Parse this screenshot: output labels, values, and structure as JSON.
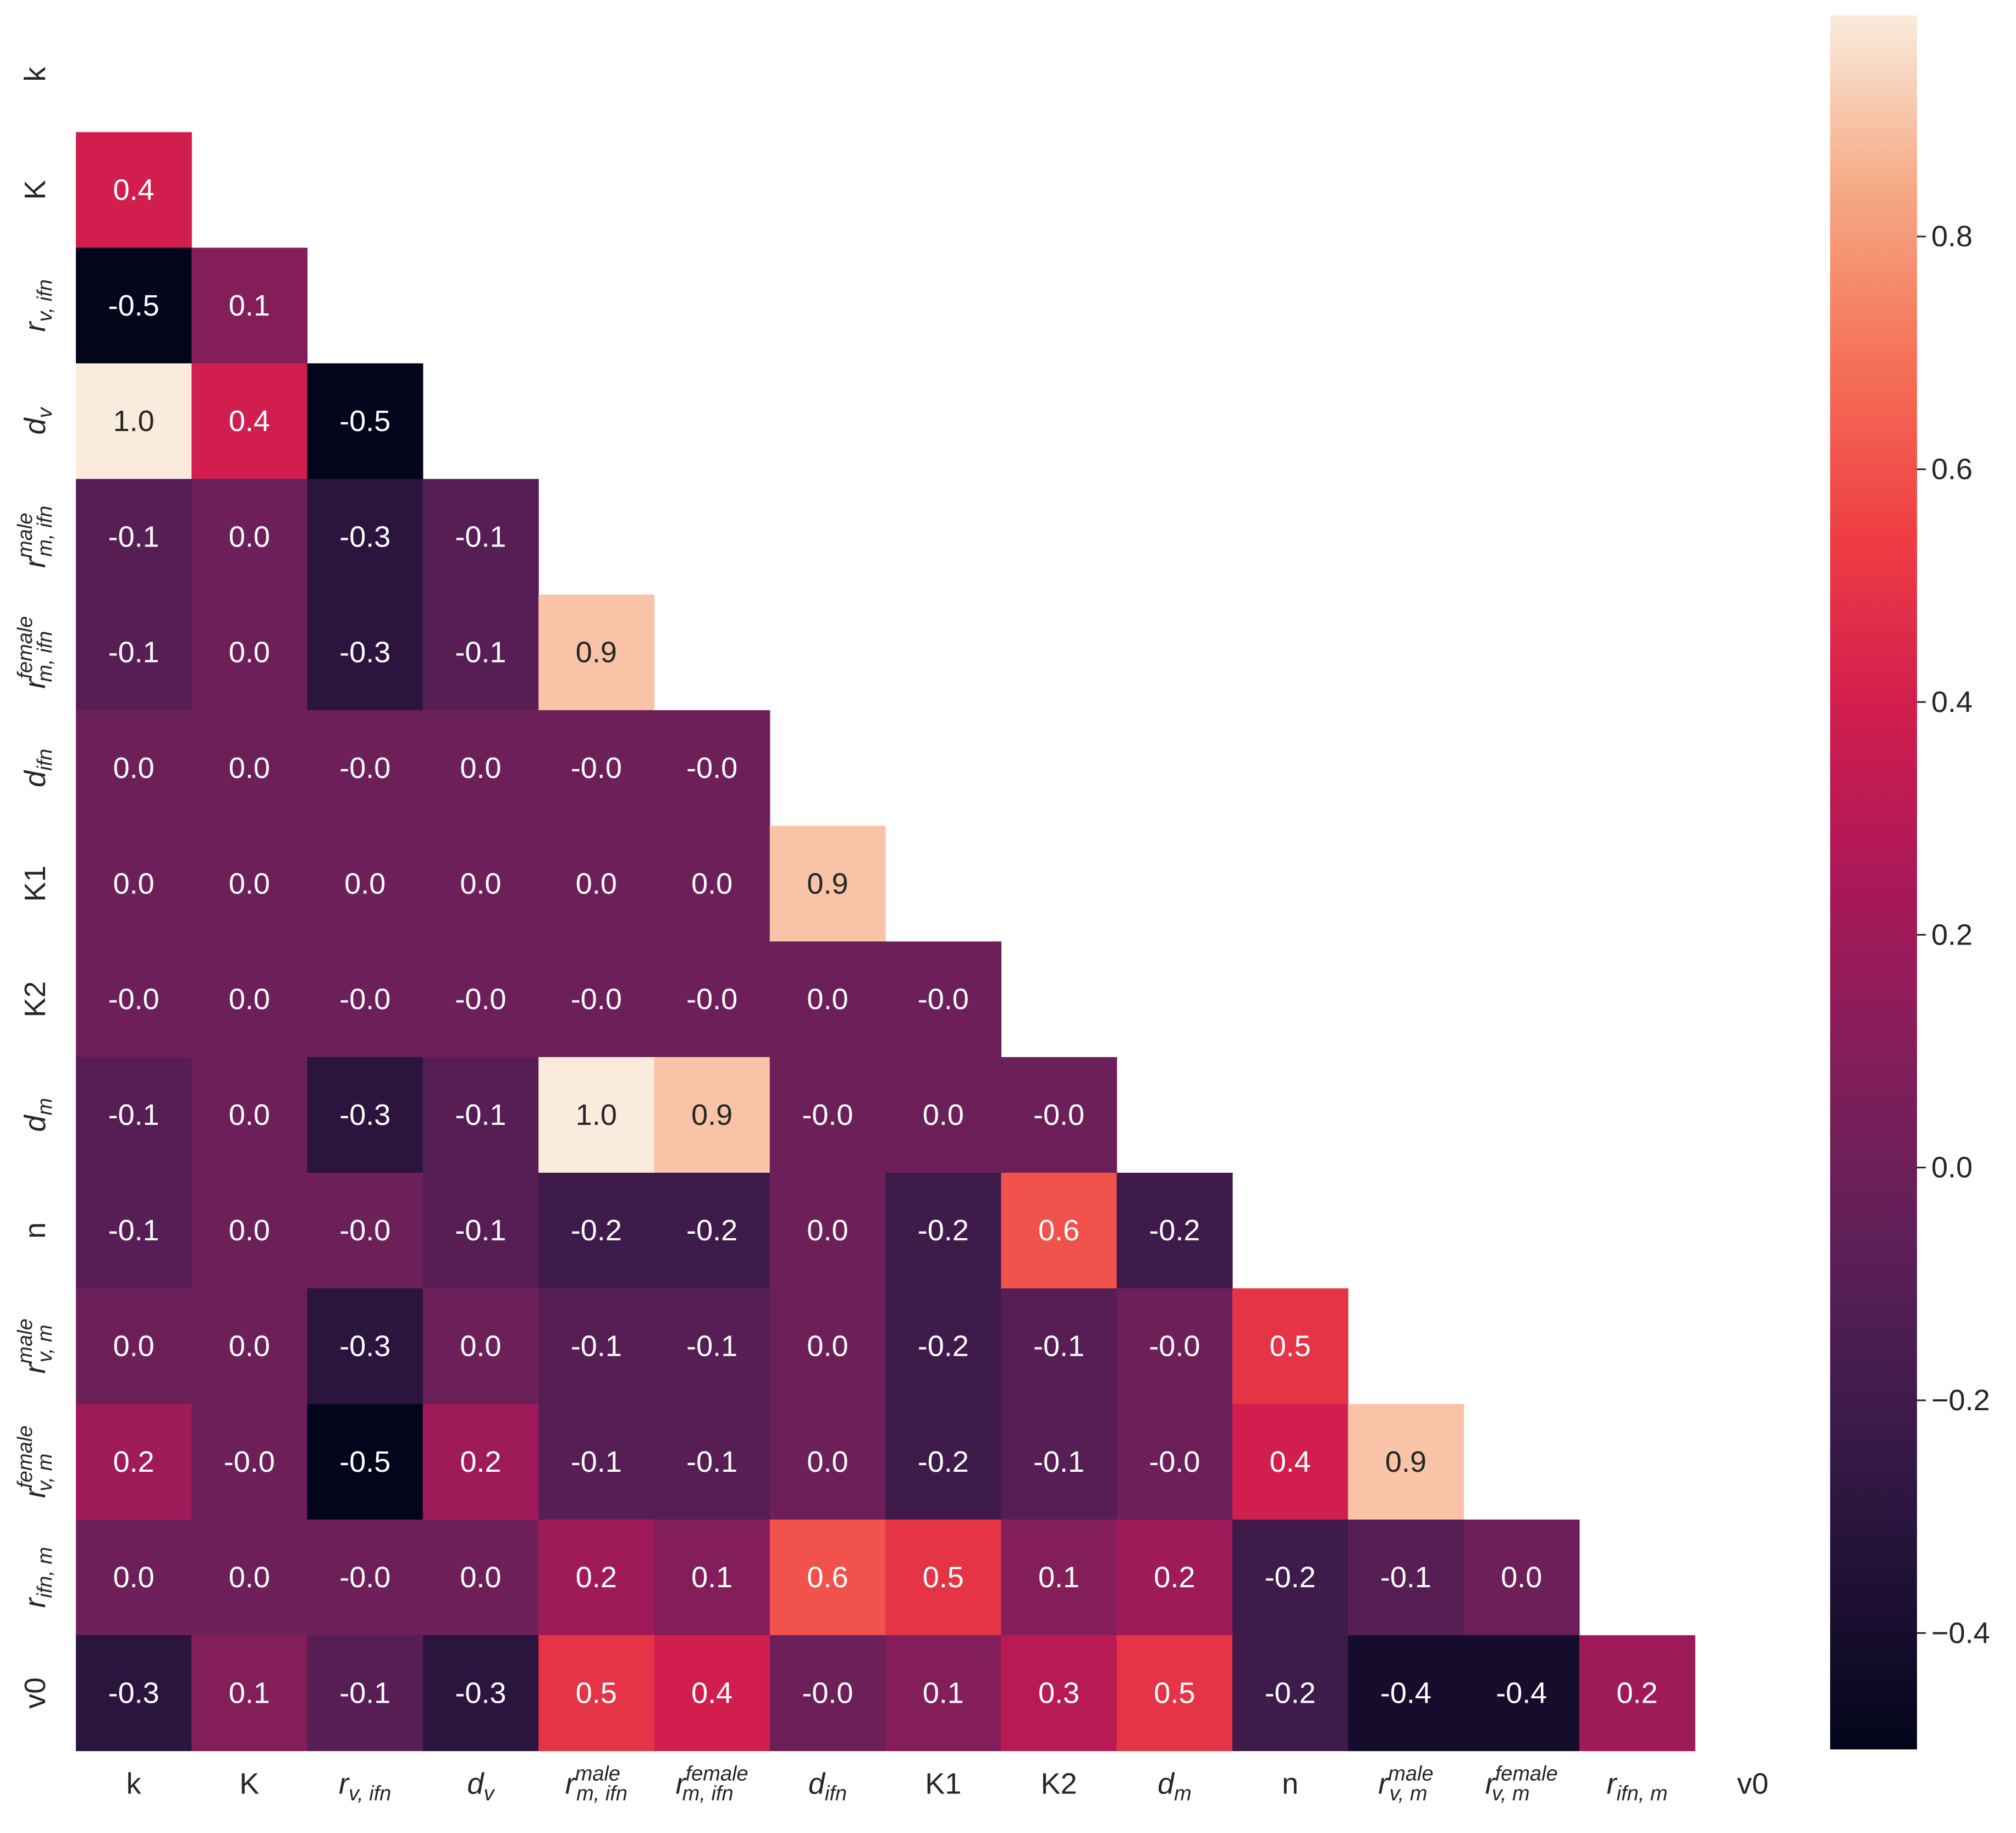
{
  "chart_data": {
    "type": "heatmap",
    "title": "",
    "xlabel": "",
    "ylabel": "",
    "variables": [
      {
        "id": "k",
        "text": "k"
      },
      {
        "id": "K",
        "text": "K"
      },
      {
        "id": "r_v_ifn",
        "base": "r",
        "sub": "v, ifn"
      },
      {
        "id": "d_v",
        "base": "d",
        "sub": "v"
      },
      {
        "id": "r_m_ifn_male",
        "base": "r",
        "sub": "m, ifn",
        "sup": "male"
      },
      {
        "id": "r_m_ifn_female",
        "base": "r",
        "sub": "m, ifn",
        "sup": "female"
      },
      {
        "id": "d_ifn",
        "base": "d",
        "sub": "ifn"
      },
      {
        "id": "K1",
        "text": "K1"
      },
      {
        "id": "K2",
        "text": "K2"
      },
      {
        "id": "d_m",
        "base": "d",
        "sub": "m"
      },
      {
        "id": "n",
        "text": "n"
      },
      {
        "id": "r_v_m_male",
        "base": "r",
        "sub": "v, m",
        "sup": "male"
      },
      {
        "id": "r_v_m_female",
        "base": "r",
        "sub": "v, m",
        "sup": "female"
      },
      {
        "id": "r_ifn_m",
        "base": "r",
        "sub": "ifn, m"
      },
      {
        "id": "v0",
        "text": "v0"
      }
    ],
    "mask": "upper-triangle-including-diagonal",
    "values": [
      [],
      [
        0.4
      ],
      [
        -0.5,
        0.1
      ],
      [
        1.0,
        0.4,
        -0.5
      ],
      [
        -0.1,
        0.0,
        -0.3,
        -0.1
      ],
      [
        -0.1,
        0.0,
        -0.3,
        -0.1,
        0.9
      ],
      [
        0.0,
        0.0,
        -0.0,
        0.0,
        -0.0,
        -0.0
      ],
      [
        0.0,
        0.0,
        0.0,
        0.0,
        0.0,
        0.0,
        0.9
      ],
      [
        -0.0,
        0.0,
        -0.0,
        -0.0,
        -0.0,
        -0.0,
        0.0,
        -0.0
      ],
      [
        -0.1,
        0.0,
        -0.3,
        -0.1,
        1.0,
        0.9,
        -0.0,
        0.0,
        -0.0
      ],
      [
        -0.1,
        0.0,
        -0.0,
        -0.1,
        -0.2,
        -0.2,
        0.0,
        -0.2,
        0.6,
        -0.2
      ],
      [
        0.0,
        0.0,
        -0.3,
        0.0,
        -0.1,
        -0.1,
        0.0,
        -0.2,
        -0.1,
        -0.0,
        0.5
      ],
      [
        0.2,
        -0.0,
        -0.5,
        0.2,
        -0.1,
        -0.1,
        0.0,
        -0.2,
        -0.1,
        -0.0,
        0.4,
        0.9
      ],
      [
        0.0,
        0.0,
        -0.0,
        0.0,
        0.2,
        0.1,
        0.6,
        0.5,
        0.1,
        0.2,
        -0.2,
        -0.1,
        0.0
      ],
      [
        -0.3,
        0.1,
        -0.1,
        -0.3,
        0.5,
        0.4,
        -0.0,
        0.1,
        0.3,
        0.5,
        -0.2,
        -0.4,
        -0.4,
        0.2
      ]
    ],
    "colorbar": {
      "colormap": "rocket",
      "vmin": -0.5,
      "vmax": 0.99,
      "ticks": [
        -0.4,
        -0.2,
        0.0,
        0.2,
        0.4,
        0.6,
        0.8
      ],
      "tick_labels": [
        "−0.4",
        "−0.2",
        "0.0",
        "0.2",
        "0.4",
        "0.6",
        "0.8"
      ]
    },
    "legend": "colorbar-right",
    "grid": false
  }
}
